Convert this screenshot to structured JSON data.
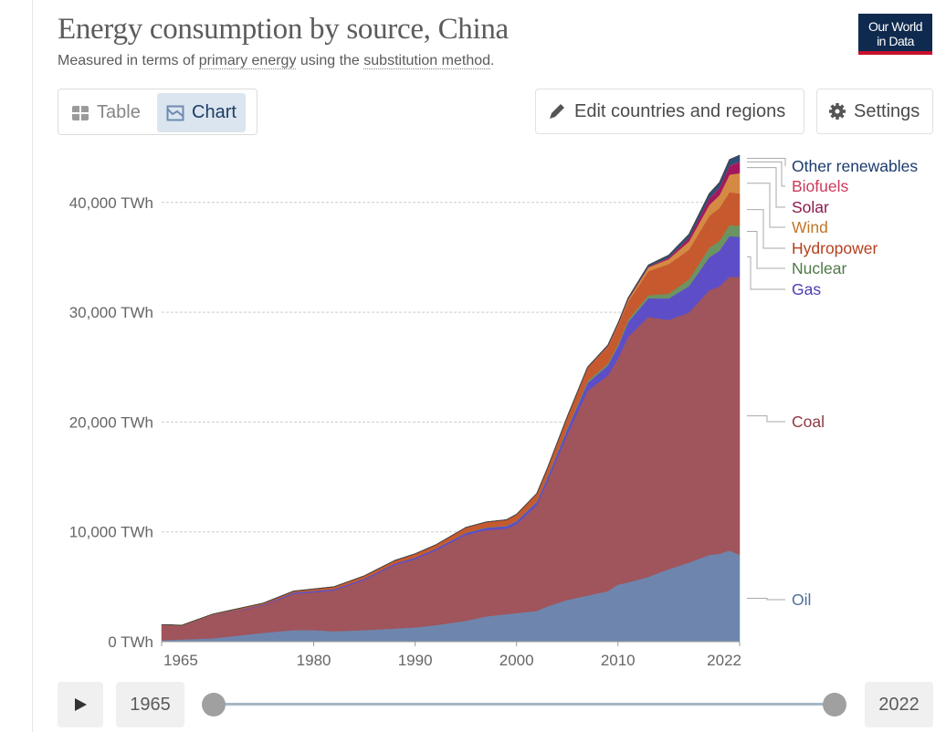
{
  "header": {
    "title": "Energy consumption by source, China",
    "subtitle_pre": "Measured in terms of ",
    "subtitle_link1": "primary energy",
    "subtitle_mid": " using the ",
    "subtitle_link2": "substitution method",
    "subtitle_post": ".",
    "logo_line1": "Our World",
    "logo_line2": "in Data"
  },
  "tabs": {
    "table": "Table",
    "chart": "Chart",
    "table_icon": "table-grid-icon",
    "chart_icon": "chart-area-icon"
  },
  "toolbar": {
    "edit": "Edit countries and regions",
    "settings": "Settings",
    "edit_icon": "pencil-icon",
    "settings_icon": "gear-icon"
  },
  "timeline": {
    "start": "1965",
    "end": "2022",
    "play_icon": "play-icon"
  },
  "chart_data": {
    "type": "area",
    "stacked": true,
    "title": "",
    "xlabel": "",
    "ylabel": "",
    "ylim": [
      0,
      44300
    ],
    "yticks": [
      0,
      10000,
      20000,
      30000,
      40000
    ],
    "ytick_labels": [
      "0 TWh",
      "10,000 TWh",
      "20,000 TWh",
      "30,000 TWh",
      "40,000 TWh"
    ],
    "xlim": [
      1965,
      2022
    ],
    "xticks": [
      1965,
      1980,
      1990,
      2000,
      2010,
      2022
    ],
    "xtick_labels": [
      "1965",
      "1980",
      "1990",
      "2000",
      "2010",
      "2022"
    ],
    "grid": "horizontal dashed",
    "legend": "right, inline labels",
    "x": [
      1965,
      1967,
      1970,
      1975,
      1978,
      1980,
      1982,
      1985,
      1988,
      1990,
      1992,
      1995,
      1997,
      1999,
      2000,
      2002,
      2003,
      2005,
      2007,
      2009,
      2010,
      2011,
      2013,
      2015,
      2017,
      2019,
      2020,
      2021,
      2022
    ],
    "series": [
      {
        "name": "Oil",
        "color": "#6e86ad",
        "label_color": "#4f6e9a",
        "values": [
          130,
          200,
          300,
          800,
          1050,
          1050,
          950,
          1050,
          1200,
          1300,
          1500,
          1900,
          2300,
          2500,
          2600,
          2800,
          3200,
          3800,
          4200,
          4600,
          5200,
          5400,
          5900,
          6600,
          7200,
          7900,
          8000,
          8300,
          7900
        ]
      },
      {
        "name": "Coal",
        "color": "#a0545c",
        "label_color": "#8c3a44",
        "values": [
          1350,
          1215,
          2070,
          2490,
          3300,
          3440,
          3720,
          4570,
          5790,
          6210,
          6790,
          7820,
          7865,
          7790,
          8095,
          9630,
          11305,
          15050,
          18635,
          19630,
          20585,
          22360,
          23670,
          22695,
          22770,
          24105,
          24345,
          24935,
          25320
        ]
      },
      {
        "name": "Gas",
        "color": "#5d4ec8",
        "label_color": "#4b3eb0",
        "values": [
          10,
          15,
          30,
          80,
          130,
          140,
          120,
          130,
          140,
          160,
          160,
          180,
          200,
          230,
          260,
          300,
          350,
          480,
          720,
          920,
          1100,
          1340,
          1700,
          1960,
          2400,
          3000,
          3250,
          3700,
          3650
        ]
      },
      {
        "name": "Nuclear",
        "color": "#6b9462",
        "label_color": "#4f7a47",
        "values": [
          0,
          0,
          0,
          0,
          0,
          0,
          0,
          0,
          0,
          0,
          0,
          30,
          35,
          40,
          45,
          65,
          110,
          135,
          160,
          175,
          185,
          215,
          280,
          430,
          620,
          860,
          900,
          1000,
          1000
        ]
      },
      {
        "name": "Hydropower",
        "color": "#c65a2e",
        "label_color": "#b4401d",
        "values": [
          60,
          70,
          100,
          130,
          120,
          170,
          210,
          250,
          270,
          330,
          350,
          470,
          500,
          540,
          580,
          680,
          700,
          980,
          1200,
          1500,
          1700,
          1650,
          2200,
          2700,
          2700,
          2900,
          3000,
          3000,
          2950
        ]
      },
      {
        "name": "Wind",
        "color": "#d58a43",
        "label_color": "#c0762a",
        "values": [
          0,
          0,
          0,
          0,
          0,
          0,
          0,
          0,
          0,
          0,
          0,
          0,
          0,
          0,
          0,
          0,
          0,
          5,
          15,
          70,
          110,
          190,
          340,
          450,
          750,
          1000,
          1150,
          1600,
          1850
        ]
      },
      {
        "name": "Solar",
        "color": "#a3175f",
        "label_color": "#8b1a4a",
        "values": [
          0,
          0,
          0,
          0,
          0,
          0,
          0,
          0,
          0,
          0,
          0,
          0,
          0,
          0,
          0,
          0,
          0,
          0,
          0,
          0,
          0,
          5,
          25,
          100,
          290,
          560,
          640,
          760,
          1000
        ]
      },
      {
        "name": "Biofuels",
        "color": "#d33b55",
        "label_color": "#cc3b5a",
        "values": [
          0,
          0,
          0,
          0,
          0,
          0,
          0,
          0,
          0,
          0,
          0,
          0,
          0,
          0,
          0,
          0,
          5,
          10,
          20,
          25,
          30,
          30,
          35,
          35,
          40,
          45,
          45,
          45,
          50
        ]
      },
      {
        "name": "Other renewables",
        "color": "#2d4f78",
        "label_color": "#1a3b6e",
        "values": [
          0,
          0,
          0,
          0,
          0,
          0,
          0,
          0,
          0,
          0,
          0,
          0,
          0,
          0,
          20,
          25,
          30,
          40,
          50,
          80,
          90,
          110,
          150,
          230,
          330,
          430,
          470,
          560,
          580
        ]
      }
    ]
  }
}
